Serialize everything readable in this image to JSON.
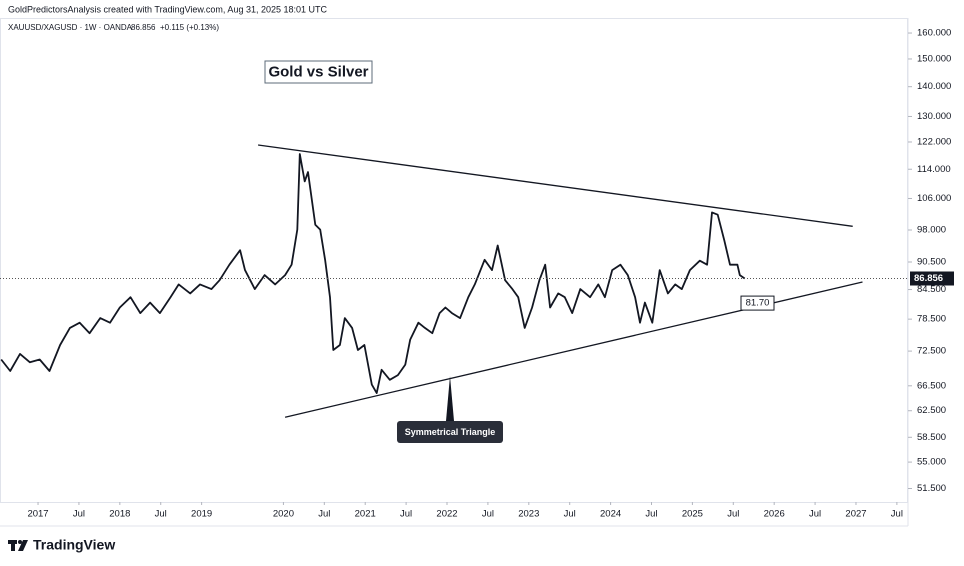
{
  "chart_data": {
    "type": "line",
    "header": "GoldPredictorsAnalysis created with TradingView.com, Aug 31, 2025 18:01 UTC",
    "symbol": "XAUUSD/XAGUSD · 1W · OANDA",
    "change": "+0.115 (+0.13%)",
    "title": "Gold vs Silver",
    "brand": "TradingView",
    "ylog": true,
    "ylim": [
      49.8,
      166.1
    ],
    "yticks": [
      {
        "value": 160,
        "label": "160.000"
      },
      {
        "value": 150,
        "label": "150.000"
      },
      {
        "value": 140,
        "label": "140.000"
      },
      {
        "value": 130,
        "label": "130.000"
      },
      {
        "value": 122,
        "label": "122.000"
      },
      {
        "value": 114,
        "label": "114.000"
      },
      {
        "value": 106,
        "label": "106.000"
      },
      {
        "value": 98,
        "label": "98.000"
      },
      {
        "value": 90.5,
        "label": "90.500"
      },
      {
        "value": 84.5,
        "label": "84.500"
      },
      {
        "value": 78.5,
        "label": "78.500"
      },
      {
        "value": 72.5,
        "label": "72.500"
      },
      {
        "value": 66.5,
        "label": "66.500"
      },
      {
        "value": 62.5,
        "label": "62.500"
      },
      {
        "value": 58.5,
        "label": "58.500"
      },
      {
        "value": 55,
        "label": "55.000"
      },
      {
        "value": 51.5,
        "label": "51.500"
      }
    ],
    "xlim": [
      2016.535,
      2027.636
    ],
    "xticks": [
      {
        "value": 2017,
        "label": "2017"
      },
      {
        "value": 2017.5,
        "label": "Jul"
      },
      {
        "value": 2018,
        "label": "2018"
      },
      {
        "value": 2018.5,
        "label": "Jul"
      },
      {
        "value": 2019,
        "label": "2019"
      },
      {
        "value": 2020,
        "label": "2020"
      },
      {
        "value": 2020.5,
        "label": "Jul"
      },
      {
        "value": 2021,
        "label": "2021"
      },
      {
        "value": 2021.5,
        "label": "Jul"
      },
      {
        "value": 2022,
        "label": "2022"
      },
      {
        "value": 2022.5,
        "label": "Jul"
      },
      {
        "value": 2023,
        "label": "2023"
      },
      {
        "value": 2023.5,
        "label": "Jul"
      },
      {
        "value": 2024,
        "label": "2024"
      },
      {
        "value": 2024.5,
        "label": "Jul"
      },
      {
        "value": 2025,
        "label": "2025"
      },
      {
        "value": 2025.5,
        "label": "Jul"
      },
      {
        "value": 2026,
        "label": "2026"
      },
      {
        "value": 2026.5,
        "label": "Jul"
      },
      {
        "value": 2027,
        "label": "2027"
      },
      {
        "value": 2027.5,
        "label": "Jul"
      }
    ],
    "x": [
      2016.55,
      2016.66,
      2016.78,
      2016.9,
      2017.02,
      2017.14,
      2017.27,
      2017.39,
      2017.51,
      2017.63,
      2017.76,
      2017.88,
      2018.0,
      2018.13,
      2018.25,
      2018.37,
      2018.49,
      2018.62,
      2018.72,
      2018.86,
      2018.98,
      2019.12,
      2019.22,
      2019.34,
      2019.47,
      2019.53,
      2019.65,
      2019.77,
      2019.9,
      2020.02,
      2020.1,
      2020.17,
      2020.2,
      2020.26,
      2020.3,
      2020.39,
      2020.45,
      2020.51,
      2020.57,
      2020.61,
      2020.69,
      2020.75,
      2020.84,
      2020.91,
      2020.99,
      2021.08,
      2021.14,
      2021.2,
      2021.3,
      2021.4,
      2021.49,
      2021.55,
      2021.65,
      2021.73,
      2021.82,
      2021.91,
      2021.98,
      2022.06,
      2022.16,
      2022.26,
      2022.34,
      2022.46,
      2022.55,
      2022.62,
      2022.71,
      2022.8,
      2022.87,
      2022.95,
      2023.04,
      2023.13,
      2023.2,
      2023.26,
      2023.36,
      2023.44,
      2023.53,
      2023.63,
      2023.75,
      2023.85,
      2023.93,
      2024.02,
      2024.12,
      2024.21,
      2024.3,
      2024.36,
      2024.42,
      2024.51,
      2024.6,
      2024.7,
      2024.79,
      2024.87,
      2024.97,
      2025.09,
      2025.18,
      2025.24,
      2025.31,
      2025.39,
      2025.46,
      2025.55,
      2025.58,
      2025.64
    ],
    "series": [
      {
        "name": "XAUUSD/XAGUSD",
        "color": "#131722",
        "values": [
          71,
          69,
          72,
          70.5,
          71,
          69,
          73.6,
          76.8,
          77.8,
          75.8,
          78.7,
          77.8,
          80.8,
          82.9,
          79.7,
          81.8,
          79.7,
          82.9,
          85.6,
          83.7,
          85.6,
          84.6,
          86.5,
          89.9,
          93.2,
          88.7,
          84.6,
          87.6,
          85.6,
          87.6,
          89.9,
          98.1,
          118.4,
          110.6,
          113.2,
          99.3,
          98.1,
          91,
          82.9,
          72.7,
          73.6,
          78.7,
          76.8,
          72.7,
          73.6,
          66.7,
          65.3,
          69.2,
          67.5,
          68.3,
          70.1,
          74.6,
          77.8,
          76.8,
          75.8,
          79.7,
          80.8,
          79.7,
          78.7,
          82.9,
          85.6,
          91,
          88.7,
          94.3,
          86.5,
          84.6,
          82.9,
          76.8,
          80.8,
          86.5,
          89.9,
          80.8,
          83.7,
          82.9,
          79.7,
          84.6,
          82.9,
          85.6,
          82.9,
          88.7,
          89.9,
          87.6,
          82.9,
          77.8,
          81.8,
          77.8,
          88.7,
          83.7,
          85.6,
          84.6,
          88.7,
          90.8,
          89.9,
          102.4,
          101.8,
          95.5,
          89.9,
          89.9,
          87.6,
          86.856
        ]
      }
    ],
    "trendlines": [
      {
        "x": [
          2019.69,
          2026.96
        ],
        "values": [
          121.1,
          98.9
        ]
      },
      {
        "x": [
          2020.02,
          2027.08
        ],
        "values": [
          61.5,
          86.1
        ]
      }
    ],
    "annotations": [
      {
        "text": "Symmetrical Triangle"
      },
      {
        "value": 81.7,
        "label": "81.70"
      }
    ]
  }
}
